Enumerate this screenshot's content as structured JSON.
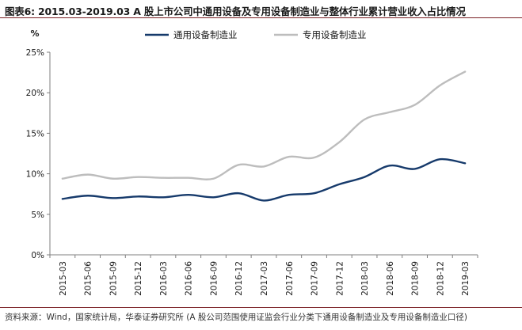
{
  "header": {
    "title": "图表6:  2015.03-2019.03 A 股上市公司中通用设备及专用设备制造业与整体行业累计营业收入占比情况"
  },
  "footer": {
    "source": "资料来源：Wind，国家统计局，华泰证券研究所 (A 股公司范围使用证监会行业分类下通用设备制造业及专用设备制造业口径)"
  },
  "colors": {
    "general": "#163a6b",
    "special": "#bdbdbd",
    "axis": "#7f7f7f",
    "title_rule": "#7a1f24"
  },
  "chart_data": {
    "type": "line",
    "title": "",
    "ylabel": "%",
    "xlabel": "",
    "ylim": [
      0,
      25
    ],
    "yticks": [
      0,
      5,
      10,
      15,
      20,
      25
    ],
    "ytick_labels": [
      "0%",
      "5%",
      "10%",
      "15%",
      "20%",
      "25%"
    ],
    "grid": false,
    "legend_position": "top-center",
    "categories": [
      "2015-03",
      "2015-06",
      "2015-09",
      "2015-12",
      "2016-03",
      "2016-06",
      "2016-09",
      "2016-12",
      "2017-03",
      "2017-06",
      "2017-09",
      "2017-12",
      "2018-03",
      "2018-06",
      "2018-09",
      "2018-12",
      "2019-03"
    ],
    "series": [
      {
        "name": "通用设备制造业",
        "color": "#163a6b",
        "values": [
          6.9,
          7.3,
          7.0,
          7.2,
          7.1,
          7.4,
          7.1,
          7.6,
          6.7,
          7.4,
          7.6,
          8.7,
          9.6,
          11.0,
          10.6,
          11.8,
          11.3
        ]
      },
      {
        "name": "专用设备制造业",
        "color": "#bdbdbd",
        "values": [
          9.4,
          9.9,
          9.4,
          9.6,
          9.5,
          9.5,
          9.4,
          11.1,
          10.9,
          12.1,
          12.0,
          13.9,
          16.7,
          17.6,
          18.5,
          20.9,
          22.6
        ]
      }
    ]
  }
}
